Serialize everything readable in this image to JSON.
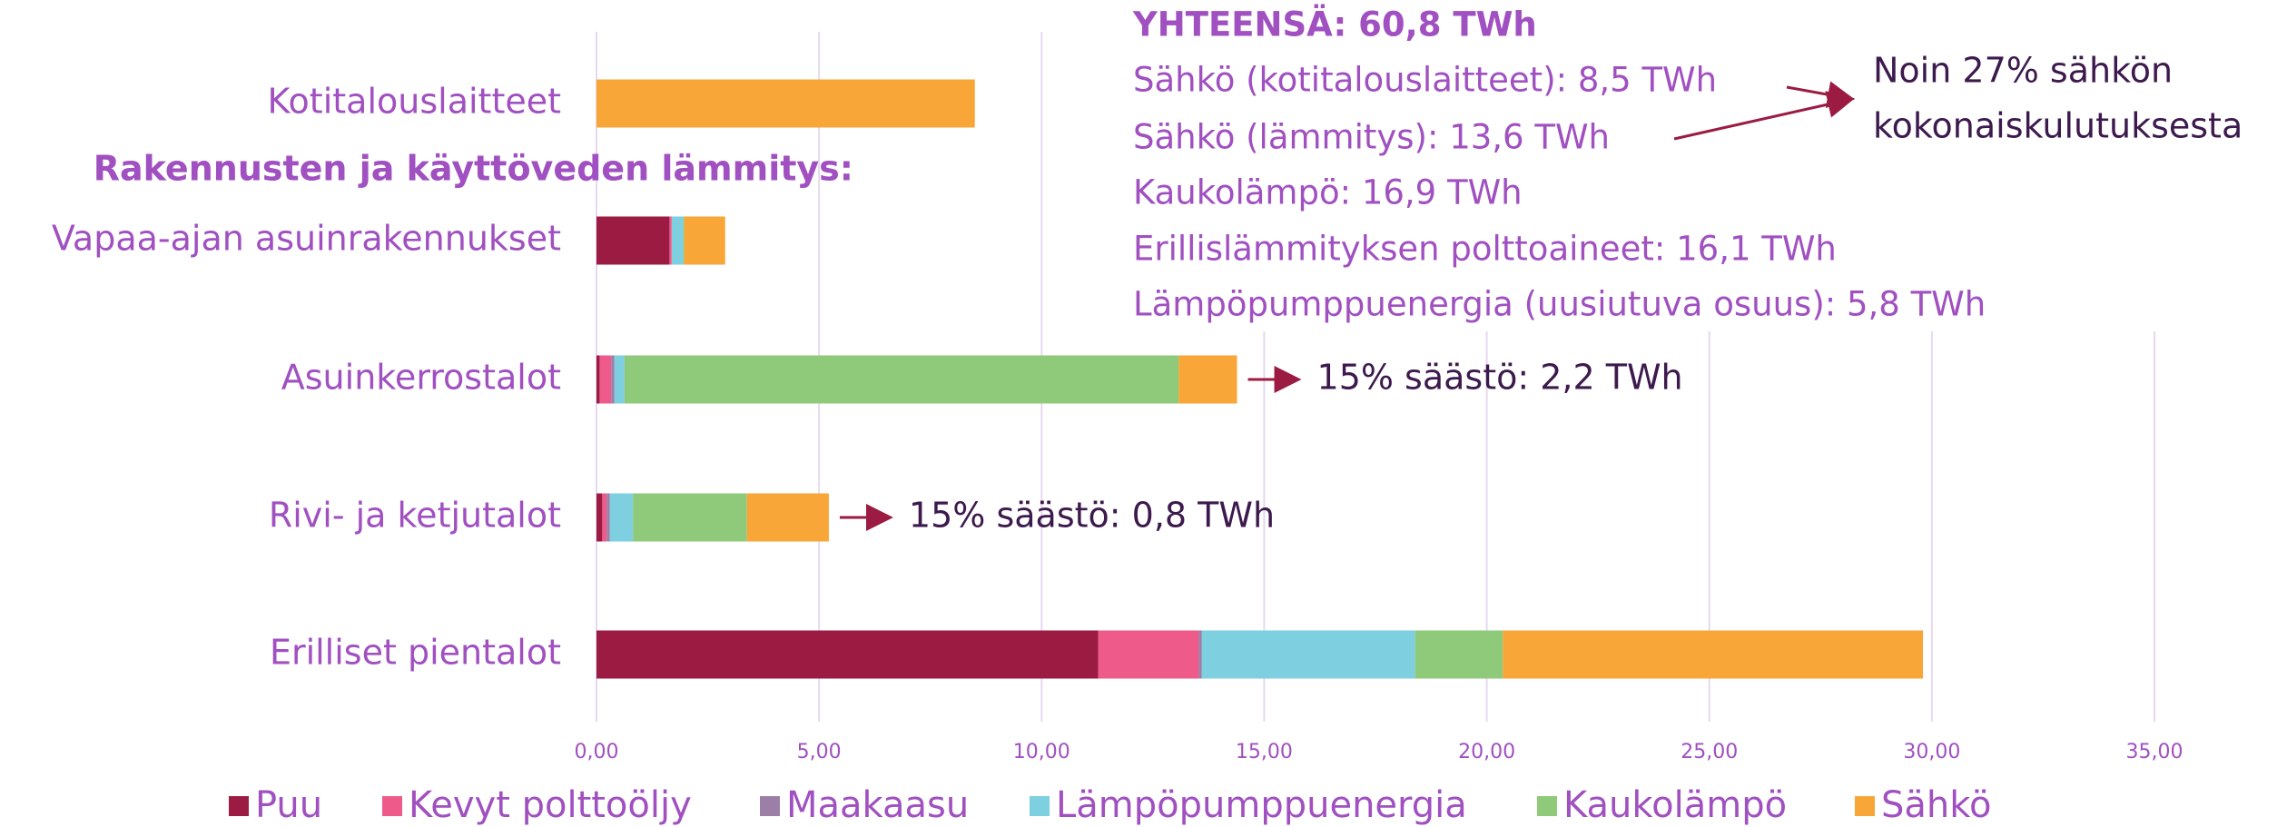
{
  "chart_data": {
    "type": "stacked-barh",
    "categories": [
      "Kotitalouslaitteet",
      "Vapaa-ajan asuinrakennukset",
      "Asuinkerrostalot",
      "Rivi- ja ketjutalot",
      "Erilliset pientalot"
    ],
    "section_label": "Rakennusten ja käyttöveden lämmitys:",
    "series": [
      {
        "name": "Puu",
        "color": "#9b1b42",
        "values": [
          0,
          1.64,
          0.07,
          0.13,
          11.27
        ]
      },
      {
        "name": "Kevyt polttoöljy",
        "color": "#ee5a8a",
        "values": [
          0,
          0.05,
          0.26,
          0.1,
          2.26
        ]
      },
      {
        "name": "Maakaasu",
        "color": "#9b7fa6",
        "values": [
          0,
          0,
          0.07,
          0.07,
          0.07
        ]
      },
      {
        "name": "Lämpöpumppuenergia",
        "color": "#7ecfe0",
        "values": [
          0,
          0.26,
          0.23,
          0.52,
          4.79
        ]
      },
      {
        "name": "Kaukolämpö",
        "color": "#8fc97a",
        "values": [
          0,
          0.02,
          12.45,
          2.56,
          1.97
        ]
      },
      {
        "name": "Sähkö",
        "color": "#f8a637",
        "values": [
          8.5,
          0.92,
          1.31,
          1.84,
          9.44
        ]
      }
    ],
    "xlim": [
      0,
      35
    ],
    "xticks": [
      {
        "value": 0,
        "label": "0,00"
      },
      {
        "value": 5,
        "label": "5,00"
      },
      {
        "value": 10,
        "label": "10,00"
      },
      {
        "value": 15,
        "label": "15,00"
      },
      {
        "value": 20,
        "label": "20,00"
      },
      {
        "value": 25,
        "label": "25,00"
      },
      {
        "value": 30,
        "label": "30,00"
      },
      {
        "value": 35,
        "label": "35,00"
      }
    ],
    "grid": true,
    "legend": "bottom",
    "annotations": [
      "15% säästö: 2,2 TWh",
      "15% säästö: 0,8 TWh"
    ],
    "info": {
      "title": "YHTEENSÄ: 60,8 TWh",
      "lines": [
        "Sähkö (kotitalouslaitteet): 8,5 TWh",
        "Sähkö (lämmitys): 13,6 TWh",
        "Kaukolämpö: 16,9 TWh",
        "Erillislämmityksen polttoaineet: 16,1 TWh",
        "Lämpöpumppuenergia (uusiutuva osuus): 5,8 TWh"
      ]
    },
    "note": [
      "Noin 27% sähkön",
      "kokonaiskulutuksesta"
    ]
  }
}
